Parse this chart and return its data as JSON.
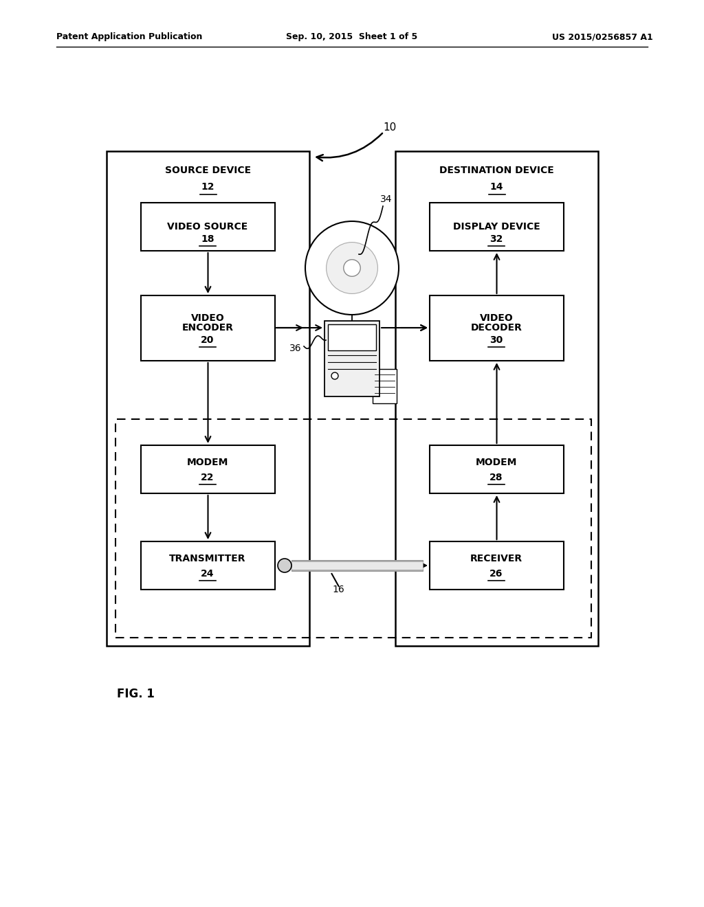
{
  "bg_color": "#ffffff",
  "header_left": "Patent Application Publication",
  "header_mid": "Sep. 10, 2015  Sheet 1 of 5",
  "header_right": "US 2015/0256857 A1",
  "fig_label": "FIG. 1",
  "label_10": "10",
  "label_16": "16",
  "label_34": "34",
  "label_36": "36",
  "source_device_label": "SOURCE DEVICE",
  "source_device_num": "12",
  "dest_device_label": "DESTINATION DEVICE",
  "dest_device_num": "14",
  "video_source_label": "VIDEO SOURCE",
  "video_source_num": "18",
  "video_encoder_label": "VIDEO\nENCODER",
  "video_encoder_num": "20",
  "modem_left_label": "MODEM",
  "modem_left_num": "22",
  "transmitter_label": "TRANSMITTER",
  "transmitter_num": "24",
  "receiver_label": "RECEIVER",
  "receiver_num": "26",
  "modem_right_label": "MODEM",
  "modem_right_num": "28",
  "video_decoder_label": "VIDEO\nDECODER",
  "video_decoder_num": "30",
  "display_device_label": "DISPLAY DEVICE",
  "display_device_num": "32"
}
